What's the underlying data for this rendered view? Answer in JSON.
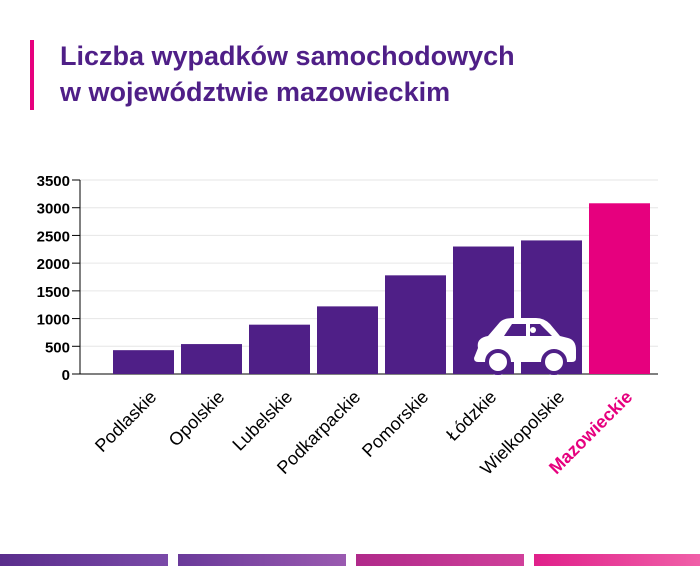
{
  "title_lines": [
    "Liczba wypadków samochodowych",
    "w województwie mazowieckim"
  ],
  "colors": {
    "title": "#4f1f87",
    "bar": "#4f1f87",
    "highlight": "#e6007e",
    "accent": "#e6007e"
  },
  "chart_data": {
    "type": "bar",
    "title": "Liczba wypadków samochodowych w województwie mazowieckim",
    "xlabel": "",
    "ylabel": "",
    "ylim": [
      0,
      3500
    ],
    "yticks": [
      0,
      500,
      1000,
      1500,
      2000,
      2500,
      3000,
      3500
    ],
    "grid": true,
    "legend": "none",
    "categories": [
      "Podlaskie",
      "Opolskie",
      "Lubelskie",
      "Podkarpackie",
      "Pomorskie",
      "Łódzkie",
      "Wielkopolskie",
      "Mazowieckie"
    ],
    "values": [
      430,
      540,
      890,
      1220,
      1780,
      2300,
      2410,
      3080
    ],
    "highlight_category": "Mazowieckie",
    "icon": "car-icon"
  }
}
